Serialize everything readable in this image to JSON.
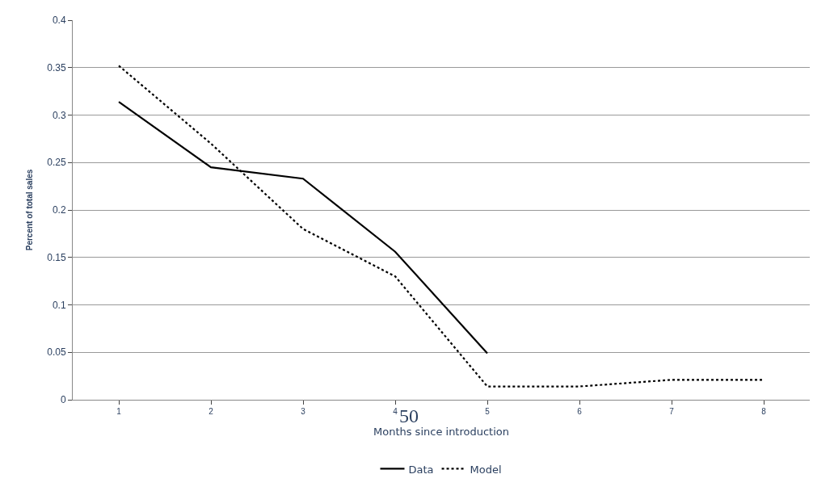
{
  "chart_data": {
    "type": "line",
    "xlabel": "Months since introduction",
    "ylabel": "Percent of total sales",
    "categories": [
      "1",
      "2",
      "3",
      "4",
      "5",
      "6",
      "7",
      "8"
    ],
    "series": [
      {
        "name": "Data",
        "color": "#000000",
        "line_style": "solid",
        "values": [
          0.314,
          0.245,
          0.233,
          0.156,
          0.049,
          null,
          null,
          null
        ]
      },
      {
        "name": "Model",
        "color": "#000000",
        "line_style": "dotted",
        "values": [
          0.352,
          0.27,
          0.18,
          0.13,
          0.014,
          0.014,
          0.021,
          0.021
        ]
      }
    ],
    "ylim": [
      0,
      0.4
    ],
    "yticks": [
      0,
      0.05,
      0.1,
      0.15,
      0.2,
      0.25,
      0.3,
      0.35,
      0.4
    ],
    "grid": "y",
    "legend": "bottom",
    "marker": "none",
    "annotations": [
      "50"
    ]
  }
}
